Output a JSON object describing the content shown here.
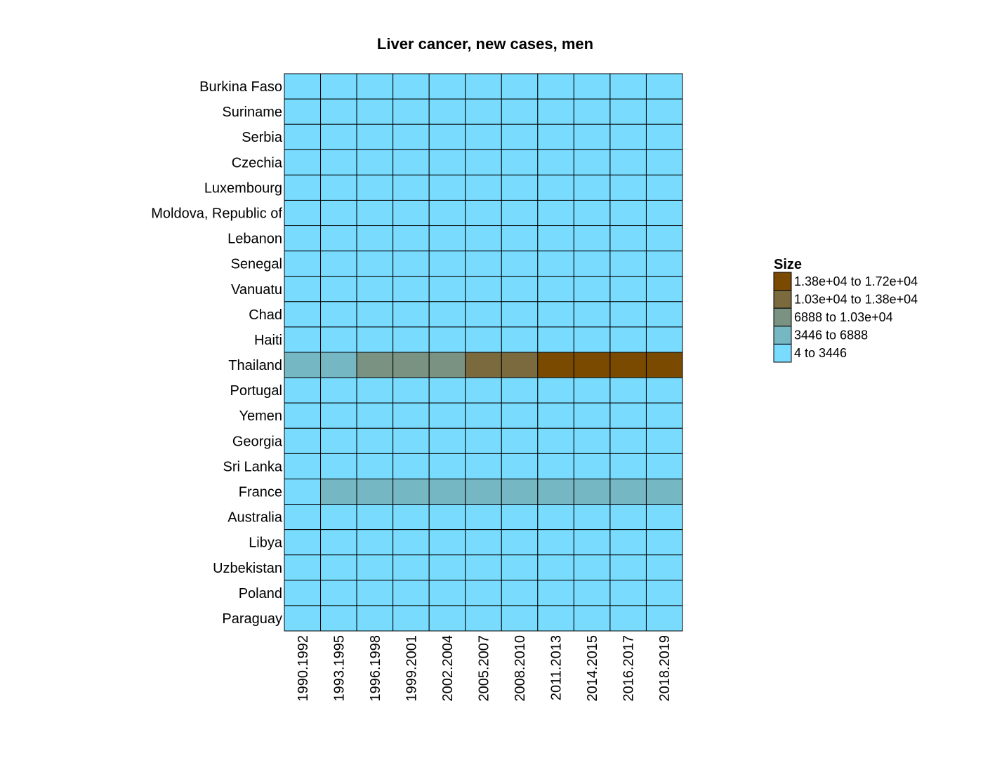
{
  "chart_data": {
    "type": "heatmap",
    "title": "Liver cancer, new cases, men",
    "xlabel": "",
    "ylabel": "",
    "x_categories": [
      "1990.1992",
      "1993.1995",
      "1996.1998",
      "1999.2001",
      "2002.2004",
      "2005.2007",
      "2008.2010",
      "2011.2013",
      "2014.2015",
      "2016.2017",
      "2018.2019"
    ],
    "y_categories": [
      "Burkina Faso",
      "Suriname",
      "Serbia",
      "Czechia",
      "Luxembourg",
      "Moldova, Republic of",
      "Lebanon",
      "Senegal",
      "Vanuatu",
      "Chad",
      "Haiti",
      "Thailand",
      "Portugal",
      "Yemen",
      "Georgia",
      "Sri Lanka",
      "France",
      "Australia",
      "Libya",
      "Uzbekistan",
      "Poland",
      "Paraguay"
    ],
    "legend": {
      "title": "Size",
      "position": "right",
      "bins": [
        {
          "label": "1.38e+04  to  1.72e+04",
          "color": "#7a4a00"
        },
        {
          "label": "1.03e+04  to  1.38e+04",
          "color": "#7a6a3e"
        },
        {
          "label": "6888  to  1.03e+04",
          "color": "#799282"
        },
        {
          "label": "3446  to  6888",
          "color": "#75b7c2"
        },
        {
          "label": "4  to  3446",
          "color": "#79dcff"
        }
      ]
    },
    "bin_matrix": [
      [
        4,
        4,
        4,
        4,
        4,
        4,
        4,
        4,
        4,
        4,
        4
      ],
      [
        4,
        4,
        4,
        4,
        4,
        4,
        4,
        4,
        4,
        4,
        4
      ],
      [
        4,
        4,
        4,
        4,
        4,
        4,
        4,
        4,
        4,
        4,
        4
      ],
      [
        4,
        4,
        4,
        4,
        4,
        4,
        4,
        4,
        4,
        4,
        4
      ],
      [
        4,
        4,
        4,
        4,
        4,
        4,
        4,
        4,
        4,
        4,
        4
      ],
      [
        4,
        4,
        4,
        4,
        4,
        4,
        4,
        4,
        4,
        4,
        4
      ],
      [
        4,
        4,
        4,
        4,
        4,
        4,
        4,
        4,
        4,
        4,
        4
      ],
      [
        4,
        4,
        4,
        4,
        4,
        4,
        4,
        4,
        4,
        4,
        4
      ],
      [
        4,
        4,
        4,
        4,
        4,
        4,
        4,
        4,
        4,
        4,
        4
      ],
      [
        4,
        4,
        4,
        4,
        4,
        4,
        4,
        4,
        4,
        4,
        4
      ],
      [
        4,
        4,
        4,
        4,
        4,
        4,
        4,
        4,
        4,
        4,
        4
      ],
      [
        3,
        3,
        2,
        2,
        2,
        1,
        1,
        0,
        0,
        0,
        0
      ],
      [
        4,
        4,
        4,
        4,
        4,
        4,
        4,
        4,
        4,
        4,
        4
      ],
      [
        4,
        4,
        4,
        4,
        4,
        4,
        4,
        4,
        4,
        4,
        4
      ],
      [
        4,
        4,
        4,
        4,
        4,
        4,
        4,
        4,
        4,
        4,
        4
      ],
      [
        4,
        4,
        4,
        4,
        4,
        4,
        4,
        4,
        4,
        4,
        4
      ],
      [
        4,
        3,
        3,
        3,
        3,
        3,
        3,
        3,
        3,
        3,
        3
      ],
      [
        4,
        4,
        4,
        4,
        4,
        4,
        4,
        4,
        4,
        4,
        4
      ],
      [
        4,
        4,
        4,
        4,
        4,
        4,
        4,
        4,
        4,
        4,
        4
      ],
      [
        4,
        4,
        4,
        4,
        4,
        4,
        4,
        4,
        4,
        4,
        4
      ],
      [
        4,
        4,
        4,
        4,
        4,
        4,
        4,
        4,
        4,
        4,
        4
      ],
      [
        4,
        4,
        4,
        4,
        4,
        4,
        4,
        4,
        4,
        4,
        4
      ]
    ],
    "grid": true
  }
}
